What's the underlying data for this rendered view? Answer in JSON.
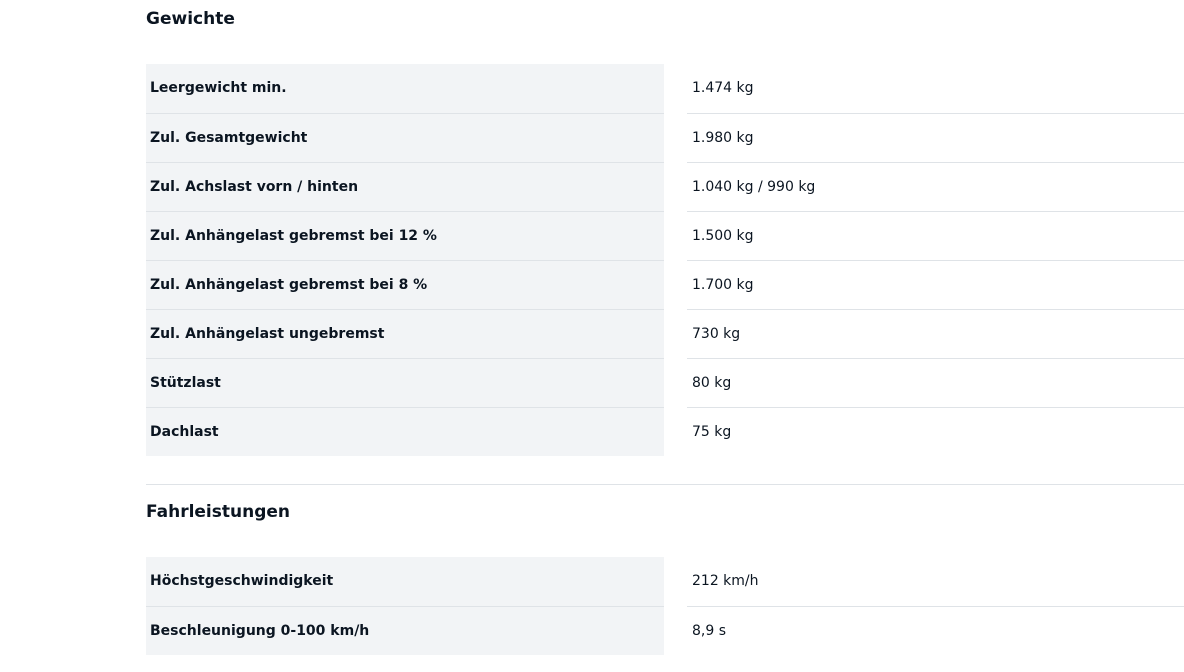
{
  "sections": [
    {
      "title": "Gewichte",
      "rows": [
        [
          "Leergewicht min.",
          "1.474 kg"
        ],
        [
          "Zul. Gesamtgewicht",
          "1.980 kg"
        ],
        [
          "Zul. Achslast vorn / hinten",
          "1.040 kg / 990 kg"
        ],
        [
          "Zul. Anhängelast gebremst bei 12 %",
          "1.500 kg"
        ],
        [
          "Zul. Anhängelast gebremst bei 8 %",
          "1.700 kg"
        ],
        [
          "Zul. Anhängelast ungebremst",
          "730 kg"
        ],
        [
          "Stützlast",
          "80 kg"
        ],
        [
          "Dachlast",
          "75 kg"
        ]
      ]
    },
    {
      "title": "Fahrleistungen",
      "rows": [
        [
          "Höchstgeschwindigkeit",
          "212 km/h"
        ],
        [
          "Beschleunigung 0-100 km/h",
          "8,9 s"
        ]
      ]
    }
  ]
}
